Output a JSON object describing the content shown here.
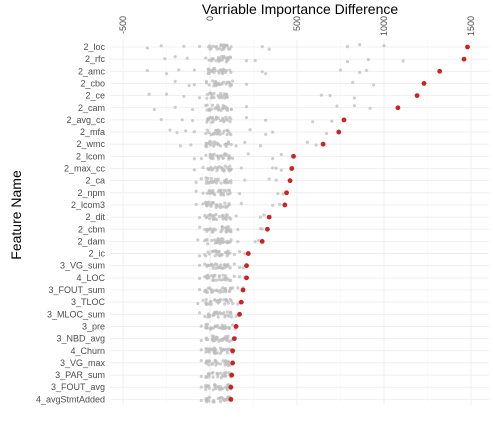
{
  "chart_data": {
    "type": "scatter",
    "title": "Varriable Importance Difference",
    "ylabel": "Feature Name",
    "xlabel": "",
    "xlim": [
      -580,
      1550
    ],
    "x_ticks": [
      -500,
      0,
      500,
      1000,
      1500
    ],
    "x_tick_labels": [
      "-500",
      "0",
      "500",
      "1000",
      "1500"
    ],
    "x_axis_position": "top",
    "x_tick_label_rotation": -90,
    "grid": true,
    "legend": "none",
    "colors": {
      "highlight": "#cc2222",
      "jitter": "#bdbdbd",
      "grid": "#ebebeb",
      "grid_minor": "#f4f4f4"
    },
    "categories": [
      "2_loc",
      "2_rfc",
      "2_amc",
      "2_cbo",
      "2_ce",
      "2_cam",
      "2_avg_cc",
      "2_mfa",
      "2_wmc",
      "2_lcom",
      "2_max_cc",
      "2_ca",
      "2_npm",
      "2_lcom3",
      "2_dit",
      "2_cbm",
      "2_dam",
      "2_ic",
      "3_VG_sum",
      "4_LOC",
      "3_FOUT_sum",
      "3_TLOC",
      "3_MLOC_sum",
      "3_pre",
      "3_NBD_avg",
      "4_Churn",
      "3_VG_max",
      "3_PAR_sum",
      "3_FOUT_avg",
      "4_avgStmtAdded"
    ],
    "highlight_values": [
      1480,
      1460,
      1320,
      1230,
      1190,
      1080,
      770,
      740,
      650,
      480,
      470,
      460,
      440,
      430,
      340,
      330,
      300,
      220,
      210,
      210,
      190,
      180,
      170,
      150,
      140,
      130,
      130,
      125,
      120,
      120
    ],
    "spread_values": [
      [
        -360,
        -280,
        -150,
        -60,
        300,
        340,
        790,
        860,
        1000
      ],
      [
        -260,
        -200,
        -130,
        100,
        210,
        260,
        790,
        910,
        1110
      ],
      [
        -360,
        -250,
        -180,
        -90,
        300,
        320,
        750,
        860,
        900
      ],
      [
        -200,
        -120,
        -90,
        130,
        210,
        820,
        940
      ],
      [
        -350,
        -250,
        -150,
        -60,
        640,
        690,
        830
      ],
      [
        -320,
        -200,
        -100,
        100,
        210,
        730,
        830,
        920
      ],
      [
        -280,
        -160,
        -100,
        100,
        210,
        320,
        590,
        700
      ],
      [
        -230,
        -190,
        -140,
        -90,
        230,
        320,
        360,
        670
      ],
      [
        -170,
        -110,
        150,
        200,
        290,
        560,
        610
      ],
      [
        -90,
        -50,
        130,
        220,
        360,
        410
      ],
      [
        -90,
        -40,
        100,
        180,
        360,
        380,
        410
      ],
      [
        -80,
        -50,
        120,
        200,
        340,
        380
      ],
      [
        -80,
        -40,
        110,
        170,
        390,
        420
      ],
      [
        -80,
        -40,
        100,
        180,
        360,
        400
      ],
      [
        -60,
        -30,
        100,
        150,
        290,
        310
      ],
      [
        -60,
        -30,
        100,
        160,
        290,
        300
      ],
      [
        -70,
        -30,
        100,
        160,
        260,
        280
      ],
      [
        -60,
        -30,
        90,
        140,
        170,
        200
      ],
      [
        -60,
        -30,
        90,
        140,
        170,
        190
      ],
      [
        -60,
        -30,
        90,
        140,
        170,
        200
      ],
      [
        -60,
        -30,
        90,
        130,
        160,
        190
      ],
      [
        -70,
        -40,
        80,
        130,
        160,
        170
      ],
      [
        -60,
        -30,
        80,
        120,
        150,
        165
      ],
      [
        -50,
        -20,
        70,
        110,
        130,
        145
      ],
      [
        -50,
        -20,
        70,
        100,
        125,
        140
      ],
      [
        -50,
        -20,
        60,
        100,
        120,
        130
      ],
      [
        -50,
        -20,
        60,
        95,
        115,
        128
      ],
      [
        -50,
        -20,
        60,
        90,
        110,
        120
      ],
      [
        -50,
        -20,
        60,
        90,
        105,
        118
      ],
      [
        -50,
        -20,
        60,
        90,
        100,
        115
      ]
    ]
  }
}
